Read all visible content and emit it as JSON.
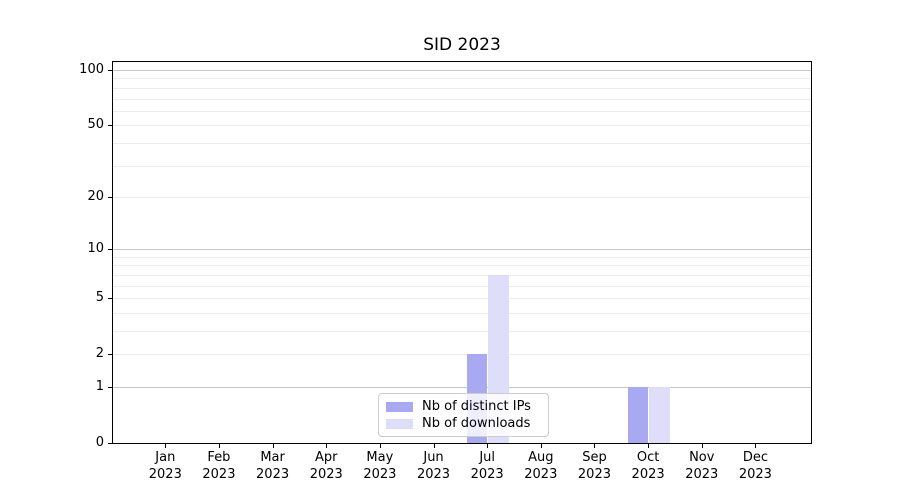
{
  "title": "SID 2023",
  "legend": {
    "items": [
      {
        "label": "Nb of distinct IPs",
        "color": "#a9a9f2"
      },
      {
        "label": "Nb of downloads",
        "color": "#dedefa"
      }
    ]
  },
  "y_axis": {
    "tick_labels": [
      "0",
      "1",
      "2",
      "5",
      "10",
      "20",
      "50",
      "100"
    ]
  },
  "x_axis": {
    "tick_labels": [
      "Jan 2023",
      "Feb 2023",
      "Mar 2023",
      "Apr 2023",
      "May 2023",
      "Jun 2023",
      "Jul 2023",
      "Aug 2023",
      "Sep 2023",
      "Oct 2023",
      "Nov 2023",
      "Dec 2023"
    ]
  },
  "chart_data": {
    "type": "bar",
    "title": "SID 2023",
    "categories": [
      "Jan 2023",
      "Feb 2023",
      "Mar 2023",
      "Apr 2023",
      "May 2023",
      "Jun 2023",
      "Jul 2023",
      "Aug 2023",
      "Sep 2023",
      "Oct 2023",
      "Nov 2023",
      "Dec 2023"
    ],
    "series": [
      {
        "name": "Nb of distinct IPs",
        "color": "#a9a9f2",
        "values": [
          0,
          0,
          0,
          0,
          0,
          0,
          2,
          0,
          0,
          1,
          0,
          0
        ]
      },
      {
        "name": "Nb of downloads",
        "color": "#dedefa",
        "values": [
          0,
          0,
          0,
          0,
          0,
          0,
          7,
          0,
          0,
          1,
          0,
          0
        ]
      }
    ],
    "xlabel": "",
    "ylabel": "",
    "yscale": "log1p",
    "ylim": [
      0,
      112
    ],
    "yticks": [
      0,
      1,
      2,
      5,
      10,
      20,
      50,
      100
    ],
    "major_gridlines": [
      1,
      10,
      100
    ],
    "minor_gridlines": [
      2,
      3,
      4,
      5,
      6,
      7,
      8,
      9,
      20,
      30,
      40,
      50,
      60,
      70,
      80,
      90
    ],
    "grid": true,
    "legend_position": "lower center",
    "colors": {
      "major_grid": "#c6c6c6",
      "minor_grid": "#ececec",
      "spine": "#000000"
    }
  }
}
